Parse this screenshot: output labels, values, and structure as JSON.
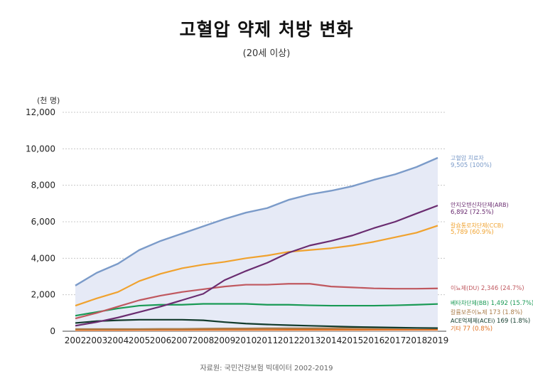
{
  "title": "고혈압 약제 처방 변화",
  "subtitle": "(20세 이상)",
  "source": "자료원: 국민건강보험 빅데이터 2002-2019",
  "chart_data": {
    "type": "line",
    "title": "고혈압 약제 처방 변화",
    "subtitle": "(20세 이상)",
    "ylabel": "(천 명)",
    "xlabel": "",
    "ylim": [
      0,
      12000
    ],
    "yticks": [
      0,
      2000,
      4000,
      6000,
      8000,
      10000,
      12000
    ],
    "ytick_labels": [
      "0",
      "2,000",
      "4,000",
      "6,000",
      "8,000",
      "10,000",
      "12,000"
    ],
    "grid": true,
    "legend": "right (end labels)",
    "x": [
      "2002",
      "2003",
      "2004",
      "2005",
      "2006",
      "2007",
      "2008",
      "2009",
      "2010",
      "2011",
      "2012",
      "2013",
      "2014",
      "2015",
      "2016",
      "2017",
      "2018",
      "2019"
    ],
    "series": [
      {
        "name": "고혈압 치료자",
        "value_label": "9,505 (100%)",
        "color": "#7b9bc9",
        "fill": "#e6eaf6",
        "values": [
          2500,
          3200,
          3700,
          4450,
          4950,
          5350,
          5750,
          6150,
          6500,
          6750,
          7200,
          7500,
          7700,
          7950,
          8300,
          8600,
          9000,
          9505
        ]
      },
      {
        "name": "안지오텐신차단제(ARB)",
        "value_label": "6,892 (72.5%)",
        "color": "#6a2c70",
        "values": [
          300,
          500,
          750,
          1050,
          1350,
          1700,
          2050,
          2800,
          3300,
          3750,
          4300,
          4700,
          4950,
          5250,
          5650,
          6000,
          6450,
          6892
        ]
      },
      {
        "name": "칼슘통로차단제(CCB)",
        "value_label": "5,789 (60.9%)",
        "color": "#f0a22e",
        "values": [
          1400,
          1800,
          2150,
          2750,
          3150,
          3450,
          3650,
          3800,
          4000,
          4150,
          4350,
          4450,
          4550,
          4700,
          4900,
          5150,
          5400,
          5789
        ]
      },
      {
        "name": "이뇨제(DU)",
        "value_label": "2,346 (24.7%)",
        "color": "#c0585f",
        "values": [
          700,
          1000,
          1350,
          1700,
          1950,
          2150,
          2300,
          2450,
          2550,
          2550,
          2600,
          2600,
          2450,
          2400,
          2350,
          2330,
          2330,
          2346
        ]
      },
      {
        "name": "베타차단제(BB)",
        "value_label": "1,492 (15.7%)",
        "color": "#1a9a55",
        "values": [
          850,
          1050,
          1250,
          1400,
          1450,
          1450,
          1500,
          1500,
          1500,
          1450,
          1450,
          1420,
          1400,
          1400,
          1400,
          1420,
          1450,
          1492
        ]
      },
      {
        "name": "칼륨보존이뇨제",
        "value_label": "173 (1.8%)",
        "color": "#a97c4a",
        "values": [
          120,
          120,
          120,
          120,
          130,
          130,
          140,
          150,
          150,
          160,
          160,
          160,
          165,
          170,
          170,
          170,
          172,
          173
        ]
      },
      {
        "name": "ACE억제제(ACEi)",
        "value_label": "169 (1.8%)",
        "color": "#123b2c",
        "values": [
          450,
          550,
          600,
          630,
          630,
          630,
          600,
          500,
          420,
          370,
          330,
          300,
          270,
          240,
          220,
          200,
          180,
          169
        ]
      },
      {
        "name": "기타",
        "value_label": "77 (0.8%)",
        "color": "#e07020",
        "values": [
          60,
          60,
          60,
          65,
          65,
          65,
          70,
          70,
          70,
          70,
          72,
          72,
          73,
          74,
          75,
          76,
          76,
          77
        ]
      }
    ]
  }
}
